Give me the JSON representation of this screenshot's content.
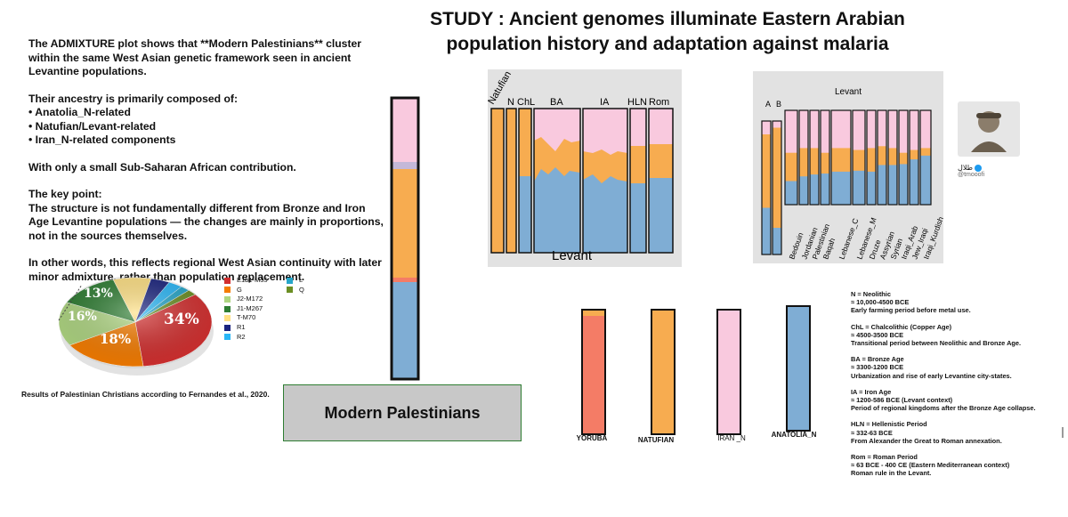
{
  "title": {
    "line1": "STUDY :  Ancient genomes illuminate Eastern Arabian",
    "line2": "population history and adaptation against malaria"
  },
  "summary": {
    "p1": "The ADMIXTURE plot shows that **Modern Palestinians** cluster within the same West Asian genetic framework seen in ancient Levantine populations.",
    "p2_intro": "Their ancestry is primarily composed of:",
    "components": [
      "Anatolia_N-related",
      "Natufian/Levant-related",
      "Iran_N-related components"
    ],
    "p3": "With only a small Sub-Saharan African contribution.",
    "p4_head": "The key point:",
    "p4": "The structure is not fundamentally different from Bronze and Iron Age Levantine populations — the changes are mainly in proportions, not in the sources themselves.",
    "p5": "In other words, this reflects regional West Asian continuity with later minor admixture, rather than population replacement."
  },
  "pie": {
    "caption": "Results of Palestinian Christians according to Fernandes et al., 2020.",
    "labels": [
      "34%",
      "18%",
      "16%",
      "13%"
    ],
    "legend_left": [
      {
        "name": "E1b1-M35",
        "color": "#d32f2f"
      },
      {
        "name": "G",
        "color": "#f57c00"
      },
      {
        "name": "J2-M172",
        "color": "#aed581"
      },
      {
        "name": "J1-M267",
        "color": "#2e7d32"
      },
      {
        "name": "T-M70",
        "color": "#ffe082"
      },
      {
        "name": "R1",
        "color": "#1a237e"
      },
      {
        "name": "R2",
        "color": "#29b6f6"
      }
    ],
    "legend_right": [
      {
        "name": "L",
        "color": "#26a6c9"
      },
      {
        "name": "Q",
        "color": "#6b8e23"
      }
    ]
  },
  "modern_label": "Modern Palestinians",
  "colors": {
    "pink": "#f9c9de",
    "orange": "#f7ac50",
    "blue": "#7fadd4",
    "salmon": "#f47c66",
    "grey": "#b9b7bf"
  },
  "ancient_panel": {
    "groups": [
      "Natufian",
      "N",
      "ChL",
      "BA",
      "IA",
      "HLN",
      "Rom"
    ],
    "bottom_label": "Levant"
  },
  "modern_panel": {
    "top_label": "Levant",
    "ab": [
      "A",
      "B"
    ],
    "populations": [
      "Bedouin",
      "Jordanian",
      "Palestinian",
      "Baqah",
      "Lebanese_C",
      "Lebanese_M",
      "Druze",
      "Assyrian",
      "Syrian",
      "Iraqi_Arab",
      "Jew_Iraqi",
      "Iraqi_Kurdish"
    ]
  },
  "source_bars": [
    {
      "label": "YORUBA",
      "color": "#f47c66"
    },
    {
      "label": "NATUFIAN",
      "color": "#f7ac50"
    },
    {
      "label": "IRAN _N",
      "color": "#f9c9de"
    },
    {
      "label": "ANATOLIA_N",
      "color": "#7fadd4"
    }
  ],
  "twitter": {
    "name": "طلال",
    "handle": "@tmooofi"
  },
  "definitions": [
    {
      "head": "N = Neolithic",
      "date": "≈ 10,000-4500 BCE",
      "desc": "Early farming period before metal use."
    },
    {
      "head": "ChL = Chalcolithic (Copper Age)",
      "date": "≈ 4500-3500 BCE",
      "desc": "Transitional period between Neolithic and Bronze Age."
    },
    {
      "head": "BA = Bronze Age",
      "date": "≈ 3300-1200 BCE",
      "desc": "Urbanization and rise of early Levantine city-states."
    },
    {
      "head": "IA = Iron Age",
      "date": "≈ 1200-586 BCE (Levant context)",
      "desc": "Period of regional kingdoms after the Bronze Age collapse."
    },
    {
      "head": "HLN = Hellenistic Period",
      "date": "≈ 332-63 BCE",
      "desc": "From Alexander the Great to Roman annexation."
    },
    {
      "head": "Rom = Roman Period",
      "date": "≈ 63 BCE - 400 CE (Eastern Mediterranean context)",
      "desc": "Roman rule in the Levant."
    }
  ]
}
